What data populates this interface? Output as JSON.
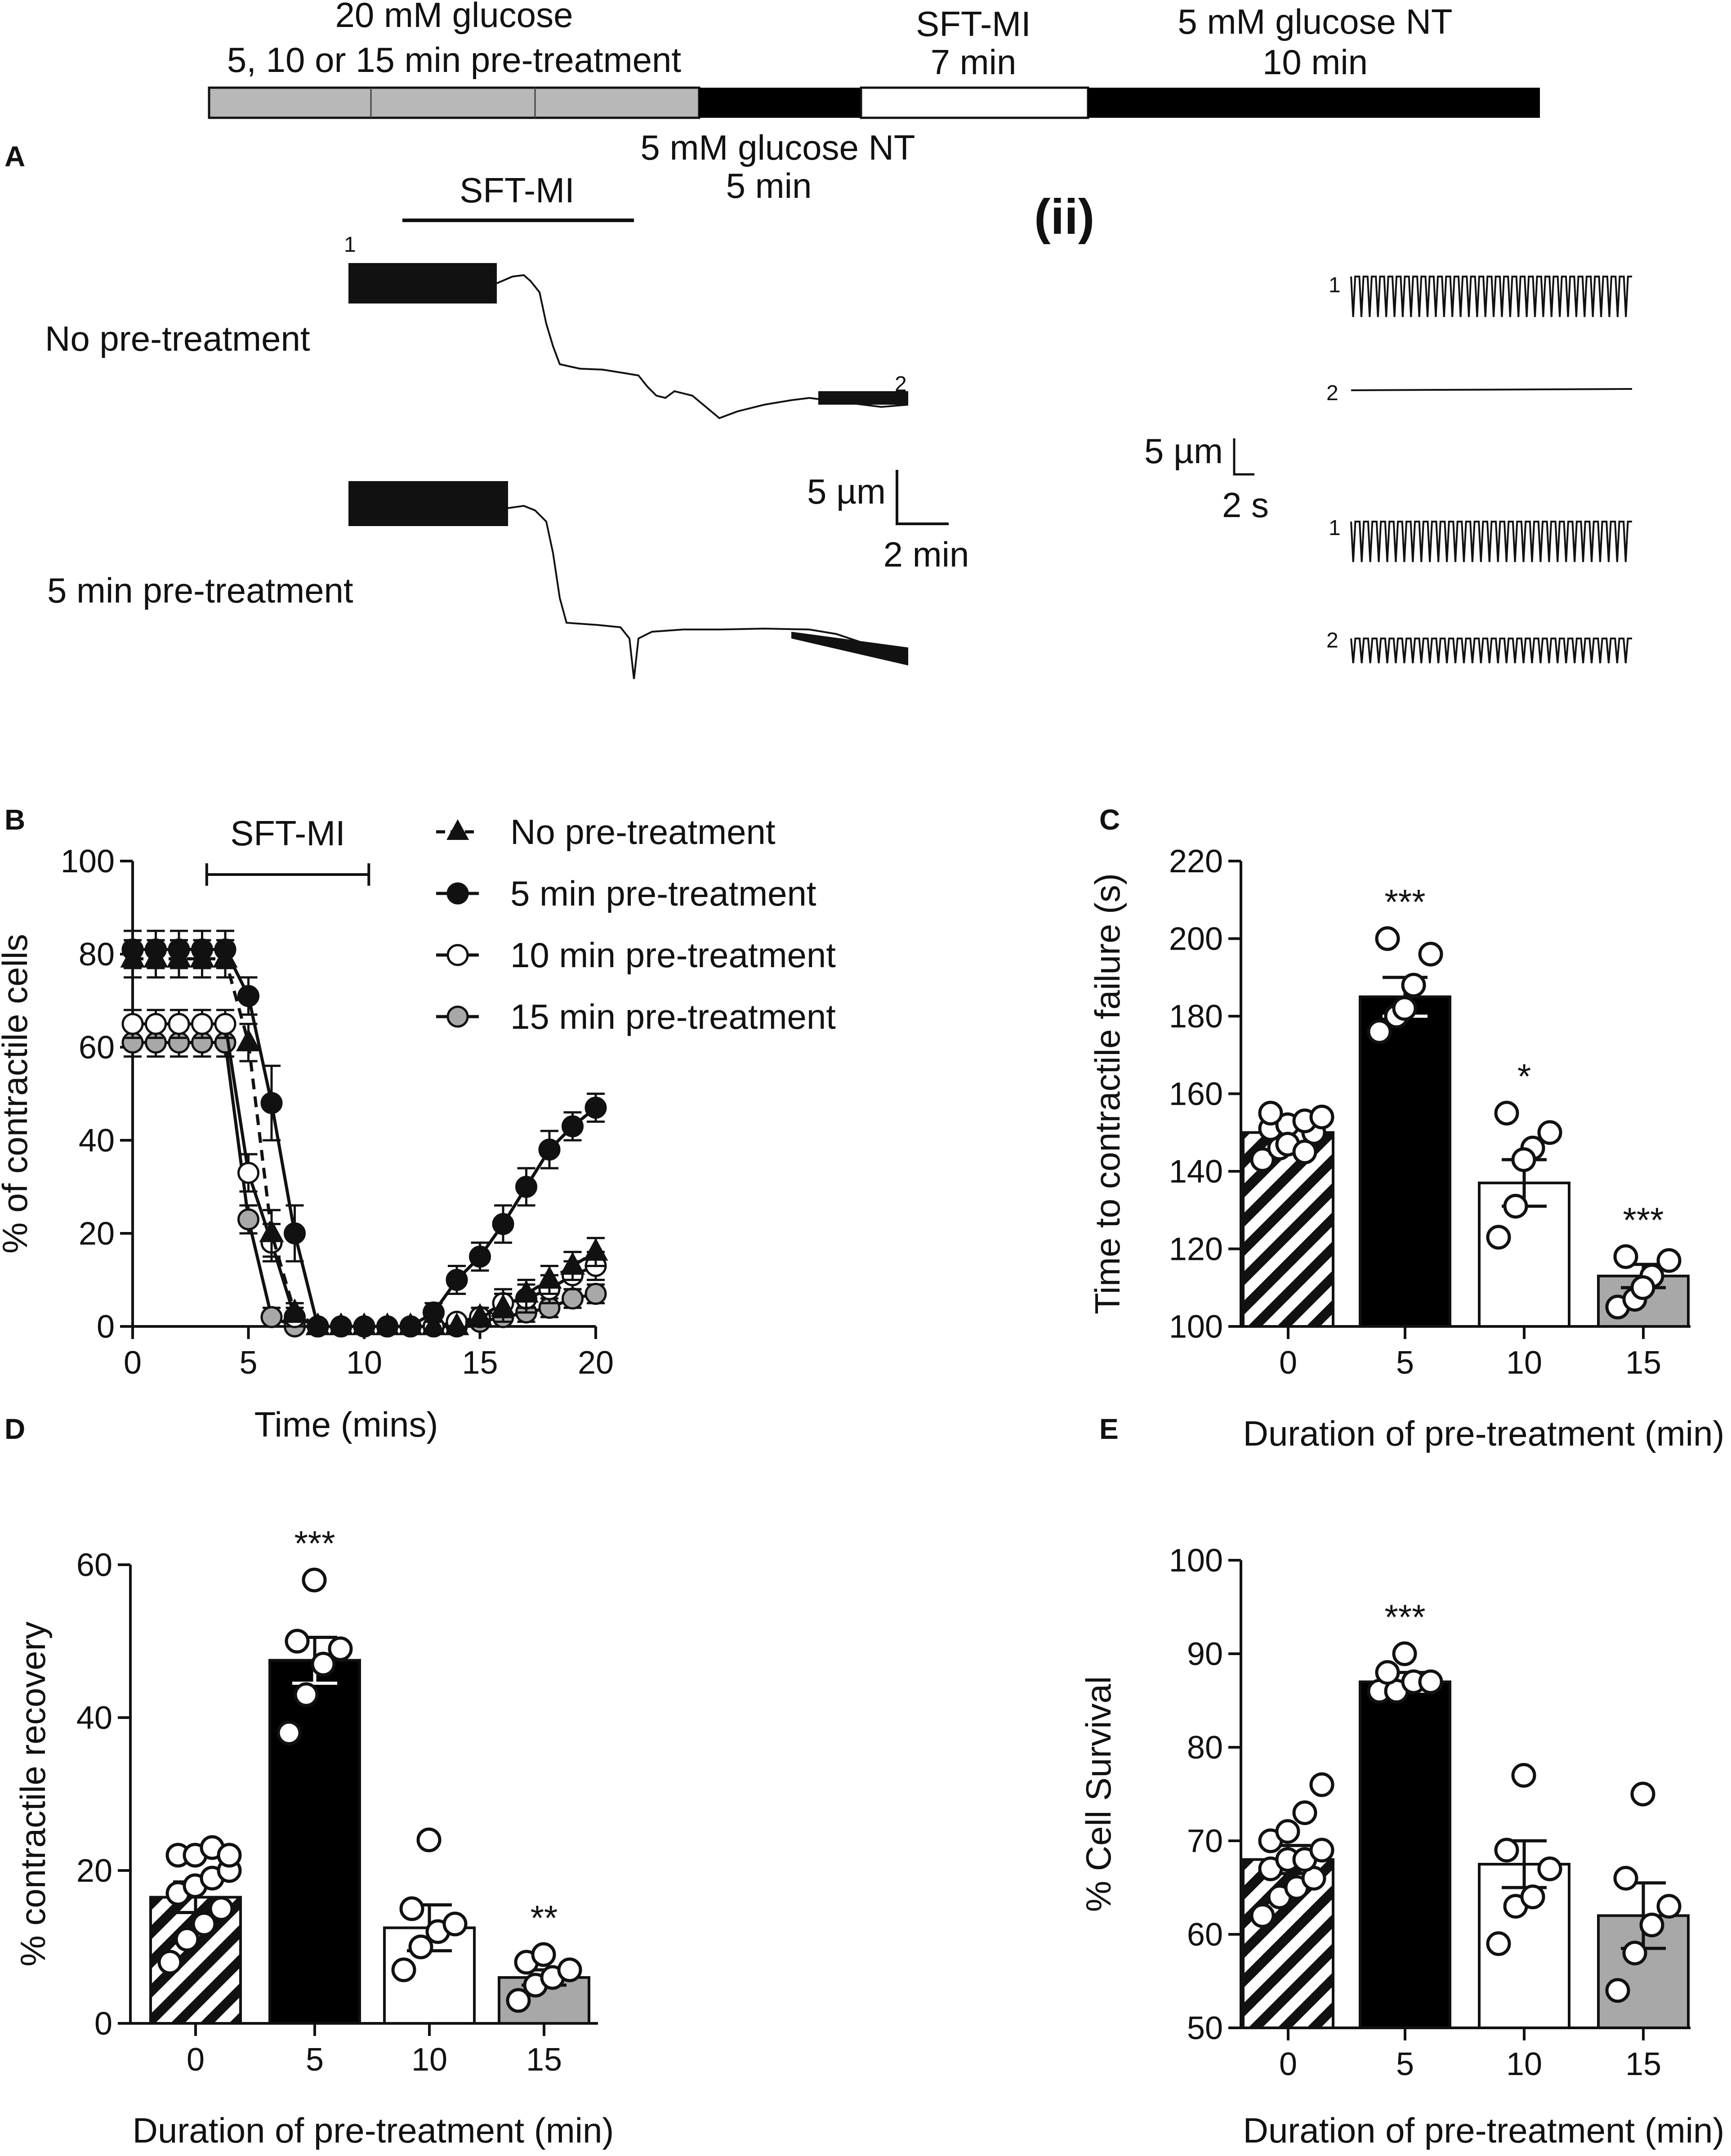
{
  "protocol": {
    "glucose20": "20 mM glucose",
    "pretreat": "5, 10 or 15 min pre-treatment",
    "sft_top": "SFT-MI",
    "sft_dur": "7 min",
    "nt_after": "5 mM glucose NT",
    "nt_after_dur": "10 min",
    "nt_before": "5 mM glucose NT",
    "nt_before_dur": "5 min"
  },
  "panelA": {
    "letter": "A",
    "sft": "SFT-MI",
    "row1": "No pre-treatment",
    "row2": "5 min pre-treatment",
    "mark1": "1",
    "mark2": "2",
    "scale_y": "5 µm",
    "scale_x": "2 min",
    "sub": "(ii)",
    "zoom_scale_y": "5 µm",
    "zoom_scale_x": "2 s"
  },
  "chart_data": [
    {
      "panel": "B",
      "type": "line",
      "title": "",
      "annotation": "SFT-MI",
      "annotation_range": [
        3.2,
        10.2
      ],
      "xlabel": "Time (mins)",
      "ylabel": "% of contractile cells",
      "xlim": [
        0,
        20
      ],
      "ylim": [
        0,
        100
      ],
      "xticks": [
        "0",
        "5",
        "10",
        "15",
        "20"
      ],
      "yticks": [
        "0",
        "20",
        "40",
        "60",
        "80",
        "100"
      ],
      "legend_position": "top-right",
      "x": [
        0,
        1,
        2,
        3,
        4,
        5,
        6,
        7,
        8,
        9,
        10,
        11,
        12,
        13,
        14,
        15,
        16,
        17,
        18,
        19,
        20
      ],
      "series": [
        {
          "name": "No pre-treatment",
          "style": "triangle-dashed",
          "values": [
            79,
            79,
            79,
            79,
            79,
            61,
            20,
            3,
            0,
            0,
            0,
            0,
            0,
            0,
            0,
            2,
            4,
            7,
            10,
            13,
            16
          ],
          "errors": [
            4,
            4,
            4,
            4,
            4,
            4,
            5,
            2,
            1,
            1,
            1,
            1,
            1,
            1,
            1,
            2,
            3,
            3,
            3,
            3,
            3
          ]
        },
        {
          "name": "5 min pre-treatment",
          "style": "black-solid",
          "values": [
            81,
            81,
            81,
            81,
            81,
            71,
            48,
            20,
            0,
            0,
            0,
            0,
            0,
            3,
            10,
            15,
            22,
            30,
            38,
            43,
            47
          ],
          "errors": [
            4,
            4,
            4,
            4,
            4,
            4,
            8,
            6,
            1,
            1,
            1,
            1,
            1,
            2,
            3,
            3,
            4,
            4,
            4,
            3,
            3
          ]
        },
        {
          "name": "10 min pre-treatment",
          "style": "white-solid",
          "values": [
            65,
            65,
            65,
            65,
            65,
            33,
            18,
            2,
            0,
            0,
            0,
            0,
            0,
            0,
            1,
            2,
            5,
            6,
            8,
            11,
            13
          ],
          "errors": [
            3,
            3,
            3,
            3,
            3,
            4,
            4,
            2,
            1,
            1,
            1,
            1,
            1,
            1,
            1,
            2,
            3,
            3,
            3,
            3,
            3
          ]
        },
        {
          "name": "15 min pre-treatment",
          "style": "grey-solid",
          "values": [
            61,
            61,
            61,
            61,
            61,
            23,
            2,
            0,
            0,
            0,
            0,
            0,
            0,
            0,
            0,
            1,
            2,
            3,
            4,
            6,
            7
          ],
          "errors": [
            3,
            3,
            3,
            3,
            3,
            3,
            2,
            1,
            1,
            1,
            1,
            1,
            1,
            1,
            1,
            1,
            1,
            2,
            2,
            2,
            2
          ]
        }
      ]
    },
    {
      "panel": "C",
      "type": "bar",
      "xlabel": "Duration of pre-treatment (min)",
      "ylabel": "Time to contractile failure (s)",
      "ylim": [
        100,
        220
      ],
      "yticks": [
        "100",
        "120",
        "140",
        "160",
        "180",
        "200",
        "220"
      ],
      "categories": [
        "0",
        "5",
        "10",
        "15"
      ],
      "values": [
        150,
        185,
        137,
        113
      ],
      "errors": [
        2,
        5,
        6,
        3
      ],
      "significance": [
        "",
        "***",
        "*",
        "***"
      ],
      "points": [
        [
          143,
          146,
          148,
          150,
          151,
          152,
          153,
          154,
          155,
          147,
          145
        ],
        [
          176,
          180,
          188,
          196,
          200,
          182
        ],
        [
          123,
          131,
          146,
          150,
          155,
          143
        ],
        [
          105,
          107,
          113,
          117,
          118,
          110
        ]
      ]
    },
    {
      "panel": "D",
      "type": "bar",
      "xlabel": "Duration of pre-treatment (min)",
      "ylabel": "% contractile recovery",
      "ylim": [
        0,
        60
      ],
      "yticks": [
        "0",
        "20",
        "40",
        "60"
      ],
      "categories": [
        "0",
        "5",
        "10",
        "15"
      ],
      "values": [
        16.5,
        47.5,
        12.5,
        6.0
      ],
      "errors": [
        2,
        3,
        3,
        1
      ],
      "significance": [
        "",
        "***",
        "",
        "**"
      ],
      "points": [
        [
          8,
          11,
          13,
          15,
          17,
          18,
          19,
          20,
          22,
          22,
          23,
          22
        ],
        [
          38,
          43,
          47,
          49,
          50,
          58
        ],
        [
          7,
          10,
          12,
          13,
          15,
          24
        ],
        [
          3,
          5,
          6,
          7,
          8,
          9
        ]
      ]
    },
    {
      "panel": "E",
      "type": "bar",
      "xlabel": "Duration of pre-treatment (min)",
      "ylabel": "% Cell Survival",
      "ylim": [
        50,
        100
      ],
      "yticks": [
        "50",
        "60",
        "70",
        "80",
        "90",
        "100"
      ],
      "categories": [
        "0",
        "5",
        "10",
        "15"
      ],
      "values": [
        68,
        87,
        67.5,
        62
      ],
      "errors": [
        1.5,
        1,
        2.5,
        3.5
      ],
      "significance": [
        "",
        "***",
        "",
        ""
      ],
      "points": [
        [
          62,
          64,
          65,
          66,
          67,
          68,
          68,
          69,
          70,
          71,
          73,
          76
        ],
        [
          86,
          86,
          87,
          87,
          88,
          90
        ],
        [
          59,
          63,
          64,
          67,
          69,
          77
        ],
        [
          54,
          58,
          61,
          63,
          66,
          75
        ]
      ]
    }
  ]
}
